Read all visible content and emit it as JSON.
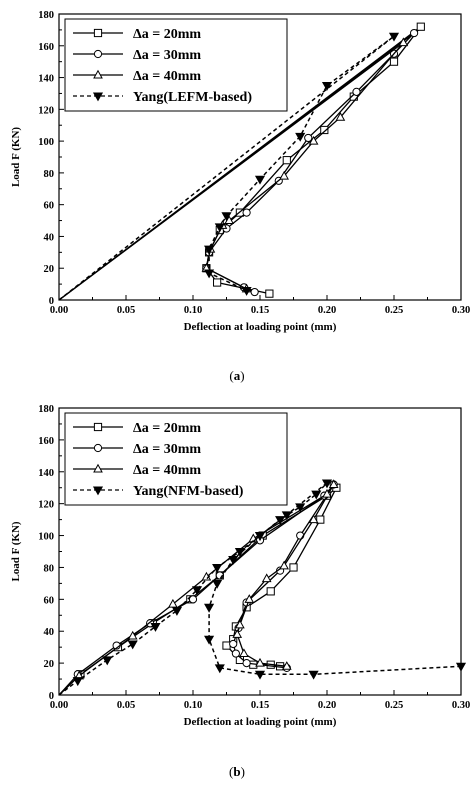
{
  "chart_data": [
    {
      "type": "line",
      "caption": "(a)",
      "xlabel": "Deflection at loading point (mm)",
      "ylabel": "Load F (KN)",
      "xlim": [
        0,
        0.3
      ],
      "ylim": [
        0,
        180
      ],
      "xticks": [
        "0.00",
        "0.05",
        "0.10",
        "0.15",
        "0.20",
        "0.25",
        "0.30"
      ],
      "yticks": [
        "0",
        "20",
        "40",
        "60",
        "80",
        "100",
        "120",
        "140",
        "160",
        "180"
      ],
      "legend_position": "top-left",
      "series": [
        {
          "name": "Δa = 20mm",
          "marker": "square",
          "dash": "solid",
          "x": [
            0,
            0.27,
            0.25,
            0.22,
            0.198,
            0.17,
            0.135,
            0.12,
            0.112,
            0.11,
            0.118,
            0.157
          ],
          "y": [
            0,
            172,
            150,
            128,
            107,
            88,
            55,
            44,
            30,
            20,
            11,
            4
          ]
        },
        {
          "name": "Δa = 30mm",
          "marker": "circle",
          "dash": "solid",
          "x": [
            0,
            0.265,
            0.25,
            0.222,
            0.186,
            0.164,
            0.14,
            0.125,
            0.112,
            0.11,
            0.138,
            0.146
          ],
          "y": [
            0,
            168,
            155,
            131,
            102,
            75,
            55,
            45,
            30,
            20,
            8,
            5
          ]
        },
        {
          "name": "Δa = 40mm",
          "marker": "triangle",
          "dash": "solid",
          "x": [
            0,
            0.257,
            0.21,
            0.19,
            0.168,
            0.127,
            0.122,
            0.113,
            0.11,
            0.14
          ],
          "y": [
            0,
            162,
            115,
            100,
            78,
            50,
            47,
            32,
            20,
            7
          ]
        },
        {
          "name": "Yang(LEFM-based)",
          "marker": "triangle-down",
          "dash": "dashed",
          "x": [
            0,
            0.25,
            0.2,
            0.18,
            0.15,
            0.125,
            0.12,
            0.112,
            0.112,
            0.14
          ],
          "y": [
            0,
            166,
            135,
            103,
            76,
            53,
            46,
            32,
            17,
            6
          ]
        }
      ]
    },
    {
      "type": "line",
      "caption": "(b)",
      "xlabel": "Deflection at loading point (mm)",
      "ylabel": "Load F (KN)",
      "xlim": [
        0,
        0.3
      ],
      "ylim": [
        0,
        180
      ],
      "xticks": [
        "0.00",
        "0.05",
        "0.10",
        "0.15",
        "0.20",
        "0.25",
        "0.30"
      ],
      "yticks": [
        "0",
        "20",
        "40",
        "60",
        "80",
        "100",
        "120",
        "140",
        "160",
        "180"
      ],
      "legend_position": "top-left",
      "series": [
        {
          "name": "Δa = 20mm",
          "marker": "square",
          "dash": "solid",
          "x": [
            0,
            0.016,
            0.044,
            0.07,
            0.098,
            0.12,
            0.152,
            0.2,
            0.207,
            0.195,
            0.175,
            0.158,
            0.14,
            0.132,
            0.13,
            0.125,
            0.135,
            0.145,
            0.158,
            0.165
          ],
          "y": [
            0,
            13,
            30,
            45,
            60,
            75,
            100,
            125,
            130,
            110,
            80,
            65,
            55,
            43,
            35,
            31,
            22,
            19,
            19,
            18
          ]
        },
        {
          "name": "Δa = 30mm",
          "marker": "circle",
          "dash": "solid",
          "x": [
            0,
            0.014,
            0.043,
            0.068,
            0.1,
            0.12,
            0.15,
            0.198,
            0.205,
            0.18,
            0.165,
            0.14,
            0.134,
            0.13,
            0.132,
            0.14,
            0.17
          ],
          "y": [
            0,
            13,
            31,
            45,
            60,
            75,
            97,
            125,
            132,
            100,
            78,
            58,
            42,
            32,
            26,
            20,
            17
          ]
        },
        {
          "name": "Δa = 40mm",
          "marker": "triangle",
          "dash": "solid",
          "x": [
            0,
            0.015,
            0.055,
            0.085,
            0.11,
            0.145,
            0.2,
            0.205,
            0.19,
            0.168,
            0.155,
            0.142,
            0.135,
            0.133,
            0.138,
            0.15,
            0.17
          ],
          "y": [
            0,
            12,
            37,
            57,
            74,
            98,
            126,
            132,
            110,
            81,
            73,
            60,
            44,
            38,
            26,
            20,
            18
          ]
        },
        {
          "name": "Yang(NFM-based)",
          "marker": "triangle-down",
          "dash": "dashed",
          "x": [
            0,
            0.014,
            0.036,
            0.055,
            0.072,
            0.088,
            0.103,
            0.118,
            0.135,
            0.15,
            0.165,
            0.18,
            0.192,
            0.2,
            0.17,
            0.15,
            0.13,
            0.118,
            0.112,
            0.112,
            0.12,
            0.15,
            0.19,
            0.3
          ],
          "y": [
            0,
            9,
            22,
            32,
            43,
            53,
            66,
            80,
            90,
            100,
            110,
            118,
            126,
            133,
            113,
            100,
            85,
            70,
            55,
            35,
            17,
            13,
            13,
            18
          ]
        }
      ]
    }
  ]
}
